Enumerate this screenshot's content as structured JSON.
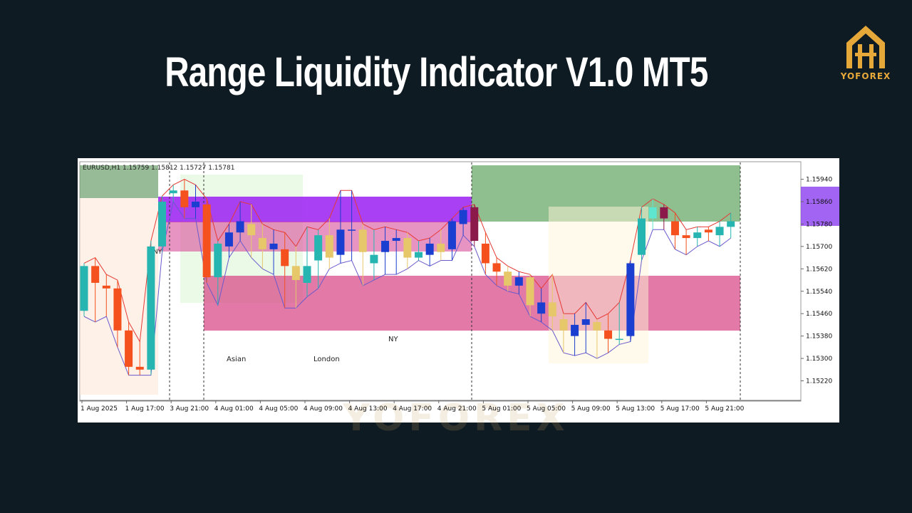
{
  "title": "Range Liquidity Indicator V1.0 MT5",
  "brand": "YOFOREX",
  "chart_data": {
    "type": "candlestick",
    "symbol_info": "EURUSD,H1  1.15759 1.15812 1.15727 1.15781",
    "watermark": "YOFOREX",
    "annotations": [
      "NY",
      "Asian",
      "London",
      "NY"
    ],
    "categories": [
      "1 Aug 2025",
      null,
      null,
      null,
      "1 Aug 17:00",
      null,
      null,
      null,
      "3 Aug 21:00",
      null,
      null,
      null,
      "4 Aug 01:00",
      null,
      null,
      null,
      "4 Aug 05:00",
      null,
      null,
      null,
      "4 Aug 09:00",
      null,
      null,
      null,
      "4 Aug 13:00",
      null,
      null,
      null,
      "4 Aug 17:00",
      null,
      null,
      null,
      "4 Aug 21:00",
      null,
      null,
      null,
      "5 Aug 01:00",
      null,
      null,
      null,
      "5 Aug 05:00",
      null,
      null,
      null,
      "5 Aug 09:00",
      null,
      null,
      null,
      "5 Aug 13:00",
      null,
      null,
      null,
      "5 Aug 17:00",
      null,
      null,
      null,
      "5 Aug 21:00",
      null,
      null
    ],
    "open": [
      1.1547,
      1.1563,
      1.1556,
      1.1555,
      1.154,
      1.1527,
      1.1526,
      1.157,
      1.1589,
      1.159,
      1.1586,
      1.1585,
      1.1559,
      1.157,
      1.1575,
      1.1578,
      1.1573,
      1.1569,
      1.1569,
      1.1563,
      1.1557,
      1.1565,
      1.1574,
      1.1567,
      1.1576,
      1.1576,
      1.1564,
      1.1568,
      1.1572,
      1.1573,
      1.1566,
      1.1567,
      1.1571,
      1.1569,
      1.1578,
      1.1584,
      1.1571,
      1.1564,
      1.1561,
      1.1556,
      1.1559,
      1.155,
      1.155,
      1.1544,
      1.1538,
      1.1542,
      1.1543,
      1.154,
      1.1537,
      1.1538,
      1.1567,
      1.158,
      1.1584,
      1.1579,
      1.1574,
      1.1573,
      1.1575,
      1.1574,
      1.1577
    ],
    "high": [
      1.1564,
      1.1566,
      1.156,
      1.1558,
      1.1543,
      1.1536,
      1.1572,
      1.1588,
      1.1592,
      1.1594,
      1.1592,
      1.1587,
      1.1572,
      1.1578,
      1.1586,
      1.1585,
      1.1578,
      1.1576,
      1.1575,
      1.157,
      1.1577,
      1.1576,
      1.158,
      1.159,
      1.159,
      1.1578,
      1.1576,
      1.1577,
      1.1576,
      1.1575,
      1.1572,
      1.1573,
      1.1576,
      1.158,
      1.1584,
      1.1585,
      1.1575,
      1.1566,
      1.1563,
      1.1561,
      1.156,
      1.1555,
      1.156,
      1.1546,
      1.1546,
      1.155,
      1.1544,
      1.1546,
      1.155,
      1.1565,
      1.1584,
      1.1587,
      1.1585,
      1.1582,
      1.1576,
      1.1577,
      1.1577,
      1.1579,
      1.1582
    ],
    "low": [
      1.1545,
      1.1543,
      1.1545,
      1.1534,
      1.1524,
      1.1524,
      1.1524,
      1.1568,
      1.1586,
      1.158,
      1.158,
      1.1557,
      1.1549,
      1.1566,
      1.1572,
      1.1566,
      1.1562,
      1.156,
      1.1548,
      1.1548,
      1.1552,
      1.1555,
      1.1562,
      1.1564,
      1.1565,
      1.1556,
      1.1558,
      1.156,
      1.156,
      1.1562,
      1.1565,
      1.1563,
      1.1565,
      1.1565,
      1.1574,
      1.157,
      1.156,
      1.1556,
      1.1554,
      1.1553,
      1.1545,
      1.1543,
      1.154,
      1.1532,
      1.1531,
      1.1532,
      1.153,
      1.1532,
      1.1535,
      1.1536,
      1.1565,
      1.1576,
      1.1576,
      1.1569,
      1.1567,
      1.157,
      1.1572,
      1.157,
      1.1573
    ],
    "close": [
      1.1563,
      1.1557,
      1.1555,
      1.154,
      1.1527,
      1.1526,
      1.157,
      1.1586,
      1.159,
      1.1584,
      1.1584,
      1.1559,
      1.1571,
      1.1575,
      1.1579,
      1.1574,
      1.1569,
      1.1571,
      1.1563,
      1.1558,
      1.1563,
      1.1574,
      1.1566,
      1.1576,
      1.1576,
      1.1568,
      1.1567,
      1.1572,
      1.1573,
      1.1566,
      1.1568,
      1.1571,
      1.1568,
      1.1579,
      1.1583,
      1.1572,
      1.1564,
      1.1561,
      1.1556,
      1.1559,
      1.1549,
      1.1546,
      1.1545,
      1.154,
      1.1542,
      1.1544,
      1.154,
      1.1537,
      1.1537,
      1.1564,
      1.158,
      1.1584,
      1.158,
      1.1574,
      1.1573,
      1.1575,
      1.1576,
      1.1577,
      1.1579
    ],
    "colors": [
      "#26b5b0",
      "#f4511e",
      "#f4511e",
      "#f4511e",
      "#f4511e",
      "#f4511e",
      "#26b5b0",
      "#26b5b0",
      "#26b5b0",
      "#f4511e",
      "#1a3fd0",
      "#f4511e",
      "#26b5b0",
      "#1a3fd0",
      "#1a3fd0",
      "#e6c76a",
      "#e6c76a",
      "#1a3fd0",
      "#f4511e",
      "#e6c76a",
      "#26b5b0",
      "#26b5b0",
      "#e6c76a",
      "#1a3fd0",
      "#1a3fd0",
      "#e6c76a",
      "#26b5b0",
      "#1a3fd0",
      "#1a3fd0",
      "#e6c76a",
      "#26b5b0",
      "#1a3fd0",
      "#e6c76a",
      "#1a3fd0",
      "#1a3fd0",
      "#8b1a4a",
      "#f4511e",
      "#f4511e",
      "#e6c76a",
      "#1a3fd0",
      "#e6c76a",
      "#1a3fd0",
      "#e6c76a",
      "#e6c76a",
      "#1a3fd0",
      "#1a3fd0",
      "#e6c76a",
      "#f4511e",
      "#26b5b0",
      "#1a3fd0",
      "#26b5b0",
      "#5ee6d0",
      "#8b1a4a",
      "#f4511e",
      "#f4511e",
      "#26b5b0",
      "#f4511e",
      "#26b5b0",
      "#26b5b0"
    ],
    "high_line_color": "#e53935",
    "low_line_color": "#6a5acd",
    "ylim": [
      1.1515,
      1.16
    ],
    "yticks": [
      {
        "value": 1.1522,
        "label": "1.15220"
      },
      {
        "value": 1.153,
        "label": "1.15300"
      },
      {
        "value": 1.1538,
        "label": "1.15380"
      },
      {
        "value": 1.1546,
        "label": "1.15460"
      },
      {
        "value": 1.1554,
        "label": "1.15540"
      },
      {
        "value": 1.1562,
        "label": "1.15620"
      },
      {
        "value": 1.157,
        "label": "1.15700"
      },
      {
        "value": 1.1578,
        "label": "1.15780"
      },
      {
        "value": 1.1586,
        "label": "1.15860"
      },
      {
        "value": 1.1594,
        "label": "1.15940"
      }
    ]
  }
}
